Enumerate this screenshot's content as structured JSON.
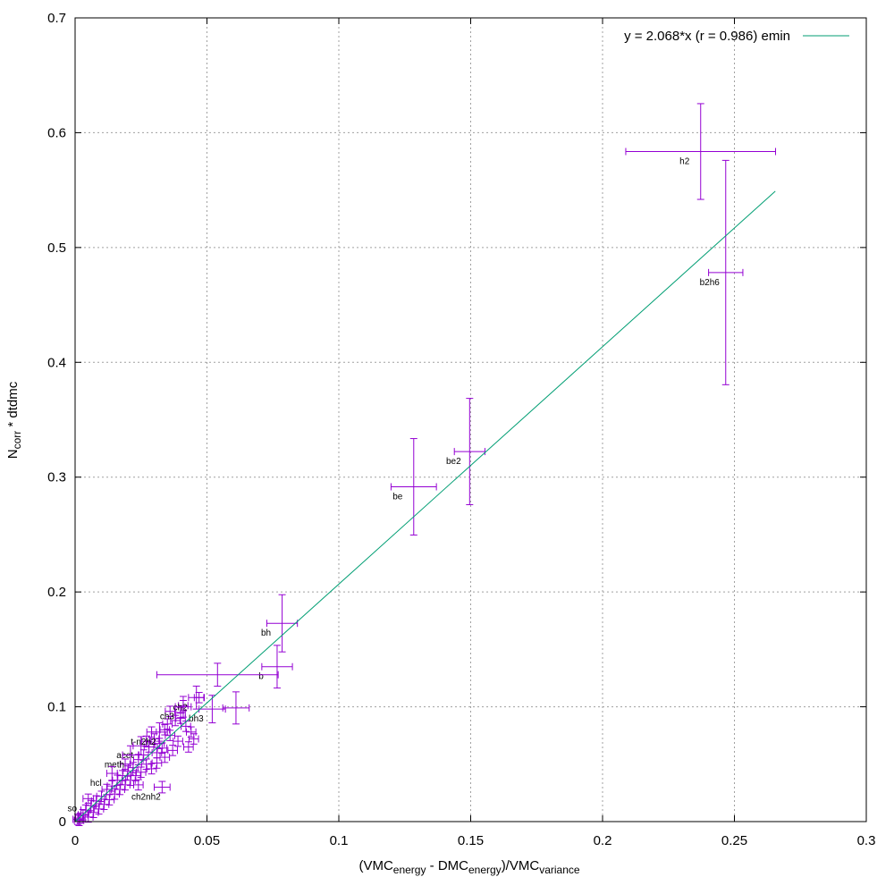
{
  "chart_data": {
    "type": "scatter",
    "xlabel": {
      "main": "(VMC",
      "sub1": "energy",
      "mid": " - DMC",
      "sub2": "energy",
      "tail": ")/VMC",
      "sub3": "variance"
    },
    "ylabel": {
      "main": "N",
      "sub": "corr",
      "tail": " * dtdmc"
    },
    "xlim": [
      0,
      0.3
    ],
    "ylim": [
      0,
      0.7
    ],
    "xticks": [
      "0",
      "0.05",
      "0.1",
      "0.15",
      "0.2",
      "0.25",
      "0.3"
    ],
    "yticks": [
      "0",
      "0.1",
      "0.2",
      "0.3",
      "0.4",
      "0.5",
      "0.6",
      "0.7"
    ],
    "grid": true,
    "legend_position": "top-right",
    "colors": {
      "points": "#9400d3",
      "fit": "#009e73",
      "grid": "#a0a0a0"
    },
    "fit": {
      "label": "y = 2.068*x (r = 0.986) emin",
      "slope": 2.068,
      "x_range": [
        0,
        0.2655
      ]
    },
    "labeled_points": [
      {
        "label": "h2",
        "x": 0.2372,
        "y": 0.5836,
        "xerr": 0.0284,
        "yerr": 0.0417
      },
      {
        "label": "b2h6",
        "x": 0.2467,
        "y": 0.4782,
        "xerr": 0.0065,
        "yerr": 0.0977
      },
      {
        "label": "be2",
        "x": 0.1496,
        "y": 0.3223,
        "xerr": 0.0058,
        "yerr": 0.0463
      },
      {
        "label": "be",
        "x": 0.1284,
        "y": 0.2916,
        "xerr": 0.0086,
        "yerr": 0.042
      },
      {
        "label": "bh",
        "x": 0.0785,
        "y": 0.1727,
        "xerr": 0.0058,
        "yerr": 0.0249
      },
      {
        "label": "b",
        "x": 0.0766,
        "y": 0.1349,
        "xerr": 0.0058,
        "yerr": 0.0186
      },
      {
        "label": "",
        "x": 0.054,
        "y": 0.1279,
        "xerr": 0.023,
        "yerr": 0.01
      },
      {
        "label": "bh3",
        "x": 0.052,
        "y": 0.098,
        "xerr": 0.005,
        "yerr": 0.012
      },
      {
        "label": "",
        "x": 0.061,
        "y": 0.099,
        "xerr": 0.005,
        "yerr": 0.014
      },
      {
        "label": "ch2",
        "x": 0.046,
        "y": 0.108,
        "xerr": 0.003,
        "yerr": 0.01
      },
      {
        "label": "ch3",
        "x": 0.041,
        "y": 0.1,
        "xerr": 0.003,
        "yerr": 0.009
      },
      {
        "label": "t-n2h2",
        "x": 0.032,
        "y": 0.078,
        "xerr": 0.003,
        "yerr": 0.008
      },
      {
        "label": "acet",
        "x": 0.025,
        "y": 0.066,
        "xerr": 0.003,
        "yerr": 0.008
      },
      {
        "label": "meth",
        "x": 0.021,
        "y": 0.058,
        "xerr": 0.003,
        "yerr": 0.008
      },
      {
        "label": "hcl",
        "x": 0.014,
        "y": 0.042,
        "xerr": 0.002,
        "yerr": 0.006
      },
      {
        "label": "ch2nh2",
        "x": 0.033,
        "y": 0.03,
        "xerr": 0.003,
        "yerr": 0.005
      },
      {
        "label": "so",
        "x": 0.005,
        "y": 0.02,
        "xerr": 0.002,
        "yerr": 0.004
      }
    ],
    "background_points_note": "dense cluster of unlabeled points near the origin",
    "cluster": [
      [
        0.04,
        0.09
      ],
      [
        0.042,
        0.083
      ],
      [
        0.038,
        0.088
      ],
      [
        0.044,
        0.078
      ],
      [
        0.036,
        0.075
      ],
      [
        0.039,
        0.07
      ],
      [
        0.034,
        0.08
      ],
      [
        0.032,
        0.068
      ],
      [
        0.03,
        0.072
      ],
      [
        0.037,
        0.062
      ],
      [
        0.028,
        0.065
      ],
      [
        0.026,
        0.058
      ],
      [
        0.031,
        0.06
      ],
      [
        0.034,
        0.056
      ],
      [
        0.024,
        0.054
      ],
      [
        0.027,
        0.05
      ],
      [
        0.022,
        0.047
      ],
      [
        0.029,
        0.046
      ],
      [
        0.025,
        0.043
      ],
      [
        0.02,
        0.044
      ],
      [
        0.023,
        0.04
      ],
      [
        0.018,
        0.04
      ],
      [
        0.021,
        0.036
      ],
      [
        0.016,
        0.036
      ],
      [
        0.019,
        0.032
      ],
      [
        0.014,
        0.031
      ],
      [
        0.017,
        0.028
      ],
      [
        0.012,
        0.028
      ],
      [
        0.015,
        0.024
      ],
      [
        0.01,
        0.022
      ],
      [
        0.013,
        0.019
      ],
      [
        0.008,
        0.018
      ],
      [
        0.011,
        0.015
      ],
      [
        0.006,
        0.014
      ],
      [
        0.009,
        0.011
      ],
      [
        0.004,
        0.01
      ],
      [
        0.007,
        0.008
      ],
      [
        0.003,
        0.006
      ],
      [
        0.005,
        0.004
      ],
      [
        0.002,
        0.003
      ],
      [
        0.001,
        0.002
      ],
      [
        0.0015,
        0.001
      ],
      [
        0.04,
        0.095
      ],
      [
        0.045,
        0.072
      ],
      [
        0.043,
        0.065
      ],
      [
        0.035,
        0.085
      ],
      [
        0.033,
        0.064
      ],
      [
        0.027,
        0.07
      ],
      [
        0.019,
        0.05
      ],
      [
        0.024,
        0.032
      ],
      [
        0.041,
        0.101
      ],
      [
        0.047,
        0.108
      ],
      [
        0.031,
        0.051
      ],
      [
        0.036,
        0.096
      ],
      [
        0.029,
        0.078
      ]
    ]
  }
}
